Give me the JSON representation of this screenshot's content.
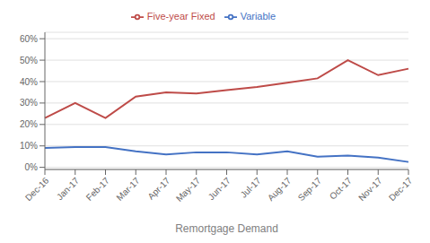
{
  "chart_data": {
    "type": "line",
    "xlabel": "Remortgage Demand",
    "categories": [
      "Dec-16",
      "Jan-17",
      "Feb-17",
      "Mar-17",
      "Apr-17",
      "May-17",
      "Jun-17",
      "Jul-17",
      "Aug-17",
      "Sep-17",
      "Oct-17",
      "Nov-17",
      "Dec-17"
    ],
    "series": [
      {
        "name": "Variable",
        "color": "#4472C4",
        "values": [
          0.09,
          0.095,
          0.095,
          0.075,
          0.06,
          0.07,
          0.07,
          0.06,
          0.075,
          0.05,
          0.055,
          0.045,
          0.025
        ]
      },
      {
        "name": "Five-year Fixed",
        "color": "#BE4B48",
        "values": [
          0.23,
          0.3,
          0.23,
          0.33,
          0.35,
          0.345,
          0.36,
          0.375,
          0.395,
          0.415,
          0.5,
          0.43,
          0.46
        ]
      }
    ],
    "ylim": [
      -0.01,
      0.63
    ],
    "yticks": [
      {
        "value": 0.0,
        "label": "0%"
      },
      {
        "value": 0.1,
        "label": "10%"
      },
      {
        "value": 0.2,
        "label": "20%"
      },
      {
        "value": 0.3,
        "label": "30%"
      },
      {
        "value": 0.4,
        "label": "40%"
      },
      {
        "value": 0.5,
        "label": "50%"
      },
      {
        "value": 0.6,
        "label": "60%"
      }
    ],
    "grid": true,
    "legend": "top"
  }
}
